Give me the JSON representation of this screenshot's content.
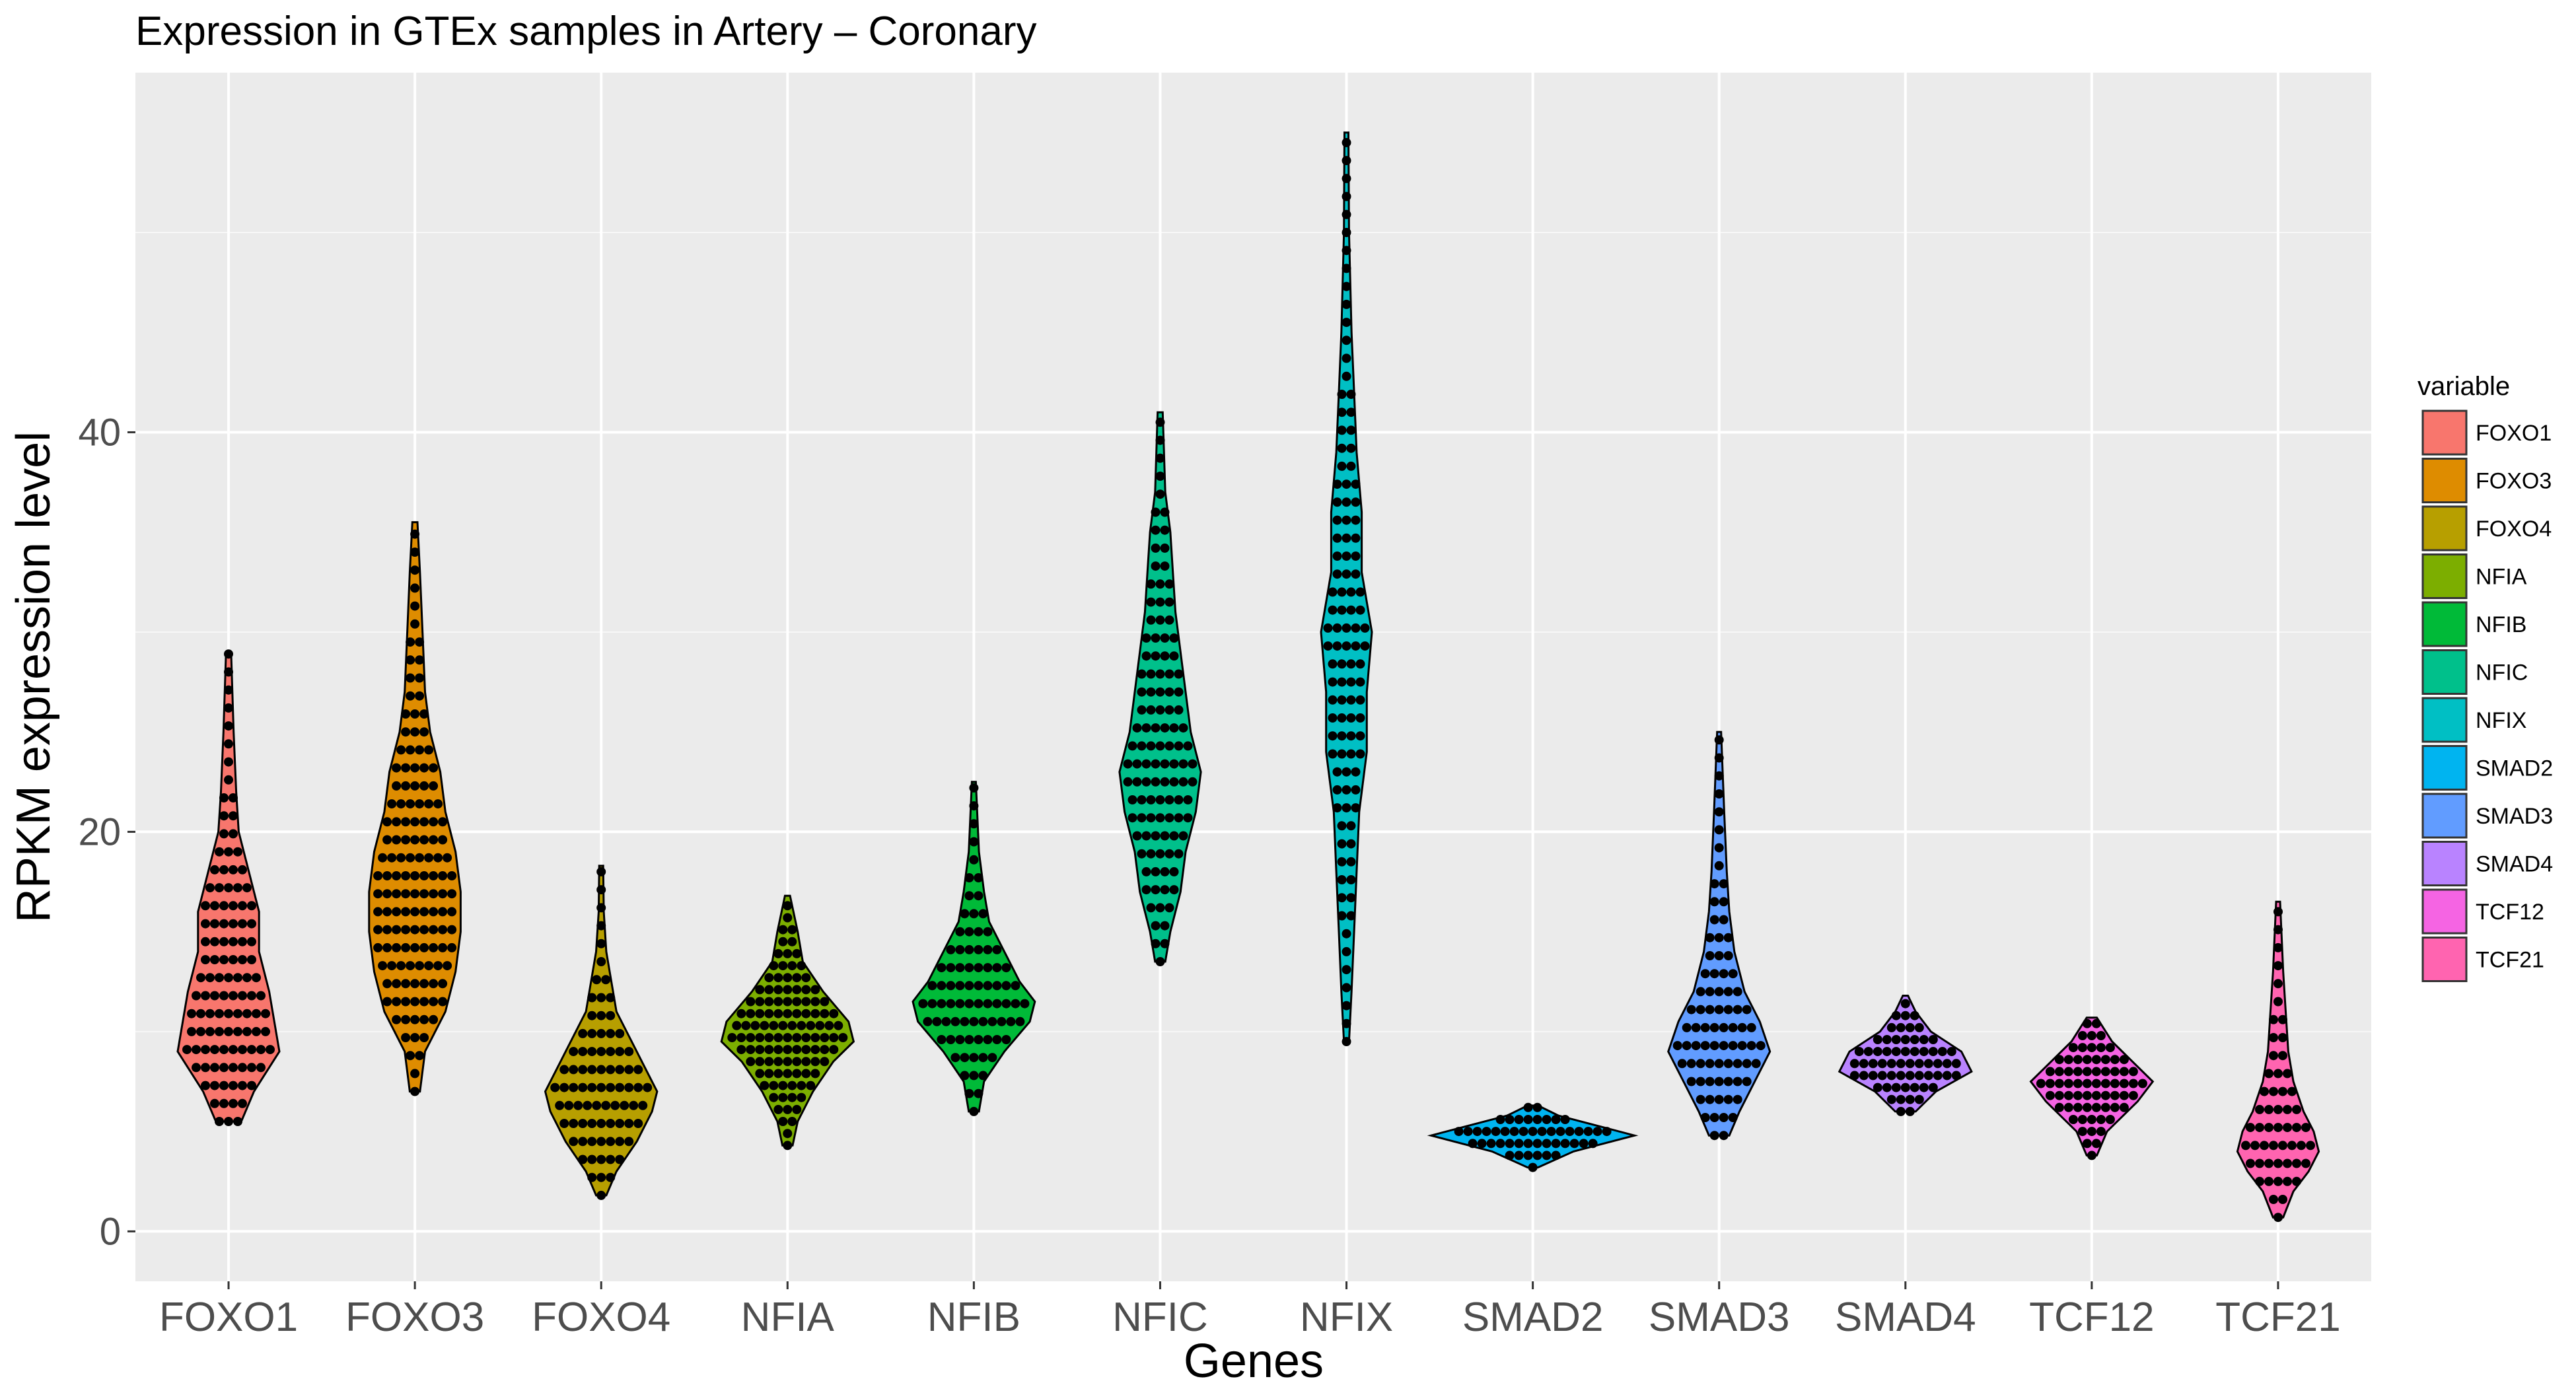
{
  "chart_data": {
    "type": "violin",
    "title": "Expression in GTEx samples in Artery – Coronary",
    "xlabel": "Genes",
    "ylabel": "RPKM expression level",
    "ylim": [
      -2.5,
      58
    ],
    "yticks": [
      0,
      20,
      40
    ],
    "grid": true,
    "legend": {
      "title": "variable",
      "position": "right"
    },
    "categories": [
      "FOXO1",
      "FOXO3",
      "FOXO4",
      "NFIA",
      "NFIB",
      "NFIC",
      "NFIX",
      "SMAD2",
      "SMAD3",
      "SMAD4",
      "TCF12",
      "TCF21"
    ],
    "series": [
      {
        "name": "FOXO1",
        "color": "#F8766D",
        "min": 5.5,
        "max": 29,
        "profile": [
          [
            5.5,
            2.5
          ],
          [
            7,
            5
          ],
          [
            9,
            10
          ],
          [
            10.5,
            9
          ],
          [
            12,
            8
          ],
          [
            14,
            6
          ],
          [
            16,
            6
          ],
          [
            18,
            4
          ],
          [
            20,
            2
          ],
          [
            22,
            1.5
          ],
          [
            25,
            1
          ],
          [
            29,
            0.5
          ]
        ]
      },
      {
        "name": "FOXO3",
        "color": "#DE8C00",
        "min": 7,
        "max": 35.5,
        "profile": [
          [
            7,
            1
          ],
          [
            9,
            2
          ],
          [
            11,
            6
          ],
          [
            13,
            8
          ],
          [
            15,
            9
          ],
          [
            17,
            9
          ],
          [
            19,
            8
          ],
          [
            21,
            6
          ],
          [
            23,
            5
          ],
          [
            25,
            3
          ],
          [
            27,
            2
          ],
          [
            30,
            1.5
          ],
          [
            33,
            1
          ],
          [
            35.5,
            0.5
          ]
        ]
      },
      {
        "name": "FOXO4",
        "color": "#B79F00",
        "min": 1.8,
        "max": 18.3,
        "profile": [
          [
            1.8,
            1
          ],
          [
            3,
            3
          ],
          [
            4.5,
            7
          ],
          [
            6,
            10
          ],
          [
            7,
            11
          ],
          [
            8,
            9
          ],
          [
            9.5,
            6
          ],
          [
            11,
            3
          ],
          [
            12.5,
            2
          ],
          [
            14,
            1
          ],
          [
            16,
            0.5
          ],
          [
            18.3,
            0.3
          ]
        ]
      },
      {
        "name": "NFIA",
        "color": "#7CAE00",
        "min": 4.3,
        "max": 16.8,
        "profile": [
          [
            4.3,
            1
          ],
          [
            5.5,
            2
          ],
          [
            7,
            5
          ],
          [
            8.5,
            9
          ],
          [
            9.5,
            13
          ],
          [
            10.5,
            12
          ],
          [
            12,
            7
          ],
          [
            13.5,
            3
          ],
          [
            15,
            2
          ],
          [
            16.8,
            0.5
          ]
        ]
      },
      {
        "name": "NFIB",
        "color": "#00BA38",
        "min": 6,
        "max": 22.5,
        "profile": [
          [
            6,
            1
          ],
          [
            7.5,
            2
          ],
          [
            9,
            6
          ],
          [
            10.5,
            11
          ],
          [
            11.5,
            12
          ],
          [
            12.5,
            9
          ],
          [
            14,
            6
          ],
          [
            15.5,
            3
          ],
          [
            17,
            2
          ],
          [
            19,
            1
          ],
          [
            22.5,
            0.3
          ]
        ]
      },
      {
        "name": "NFIC",
        "color": "#00C08B",
        "min": 13.5,
        "max": 41,
        "profile": [
          [
            13.5,
            1
          ],
          [
            15,
            2
          ],
          [
            17,
            4
          ],
          [
            19,
            5
          ],
          [
            21,
            7
          ],
          [
            23,
            8
          ],
          [
            25,
            6
          ],
          [
            27,
            5
          ],
          [
            29,
            4
          ],
          [
            31,
            3
          ],
          [
            33,
            2.5
          ],
          [
            35,
            2
          ],
          [
            37,
            1
          ],
          [
            41,
            0.5
          ]
        ]
      },
      {
        "name": "NFIX",
        "color": "#00BFC4",
        "min": 9.5,
        "max": 55,
        "profile": [
          [
            9.5,
            0.5
          ],
          [
            12,
            1
          ],
          [
            15,
            1.5
          ],
          [
            18,
            2
          ],
          [
            21,
            2.5
          ],
          [
            24,
            4
          ],
          [
            27,
            4
          ],
          [
            30,
            5
          ],
          [
            33,
            3
          ],
          [
            36,
            3
          ],
          [
            39,
            2
          ],
          [
            42,
            1.5
          ],
          [
            45,
            1
          ],
          [
            50,
            0.5
          ],
          [
            55,
            0.3
          ]
        ]
      },
      {
        "name": "SMAD2",
        "color": "#00B4F0",
        "min": 3.2,
        "max": 6.3,
        "profile": [
          [
            3.2,
            1
          ],
          [
            4,
            8
          ],
          [
            4.8,
            20
          ],
          [
            5.2,
            14
          ],
          [
            5.8,
            5
          ],
          [
            6.3,
            1
          ]
        ]
      },
      {
        "name": "SMAD3",
        "color": "#619CFF",
        "min": 4.8,
        "max": 25,
        "profile": [
          [
            4.8,
            2
          ],
          [
            6,
            4
          ],
          [
            7.5,
            7
          ],
          [
            9,
            10
          ],
          [
            10.5,
            8
          ],
          [
            12,
            5
          ],
          [
            14,
            3
          ],
          [
            16,
            2
          ],
          [
            18,
            1.5
          ],
          [
            21,
            1
          ],
          [
            25,
            0.3
          ]
        ]
      },
      {
        "name": "SMAD4",
        "color": "#B983FF",
        "min": 6,
        "max": 11.8,
        "profile": [
          [
            6,
            2
          ],
          [
            7,
            6
          ],
          [
            8,
            13
          ],
          [
            9,
            11
          ],
          [
            10,
            5
          ],
          [
            11,
            2
          ],
          [
            11.8,
            0.5
          ]
        ]
      },
      {
        "name": "TCF12",
        "color": "#F564E3",
        "min": 3.8,
        "max": 10.7,
        "profile": [
          [
            3.8,
            1
          ],
          [
            5,
            3
          ],
          [
            6.5,
            9
          ],
          [
            7.5,
            12
          ],
          [
            8.5,
            8
          ],
          [
            9.5,
            4
          ],
          [
            10.7,
            1
          ]
        ]
      },
      {
        "name": "TCF21",
        "color": "#FF64B0",
        "min": 0.7,
        "max": 16.5,
        "profile": [
          [
            0.7,
            1
          ],
          [
            2,
            3
          ],
          [
            3,
            6
          ],
          [
            4,
            8
          ],
          [
            5,
            7
          ],
          [
            6,
            5
          ],
          [
            7.5,
            3
          ],
          [
            9,
            2
          ],
          [
            11,
            1.5
          ],
          [
            13,
            1
          ],
          [
            16.5,
            0.3
          ]
        ]
      }
    ]
  }
}
